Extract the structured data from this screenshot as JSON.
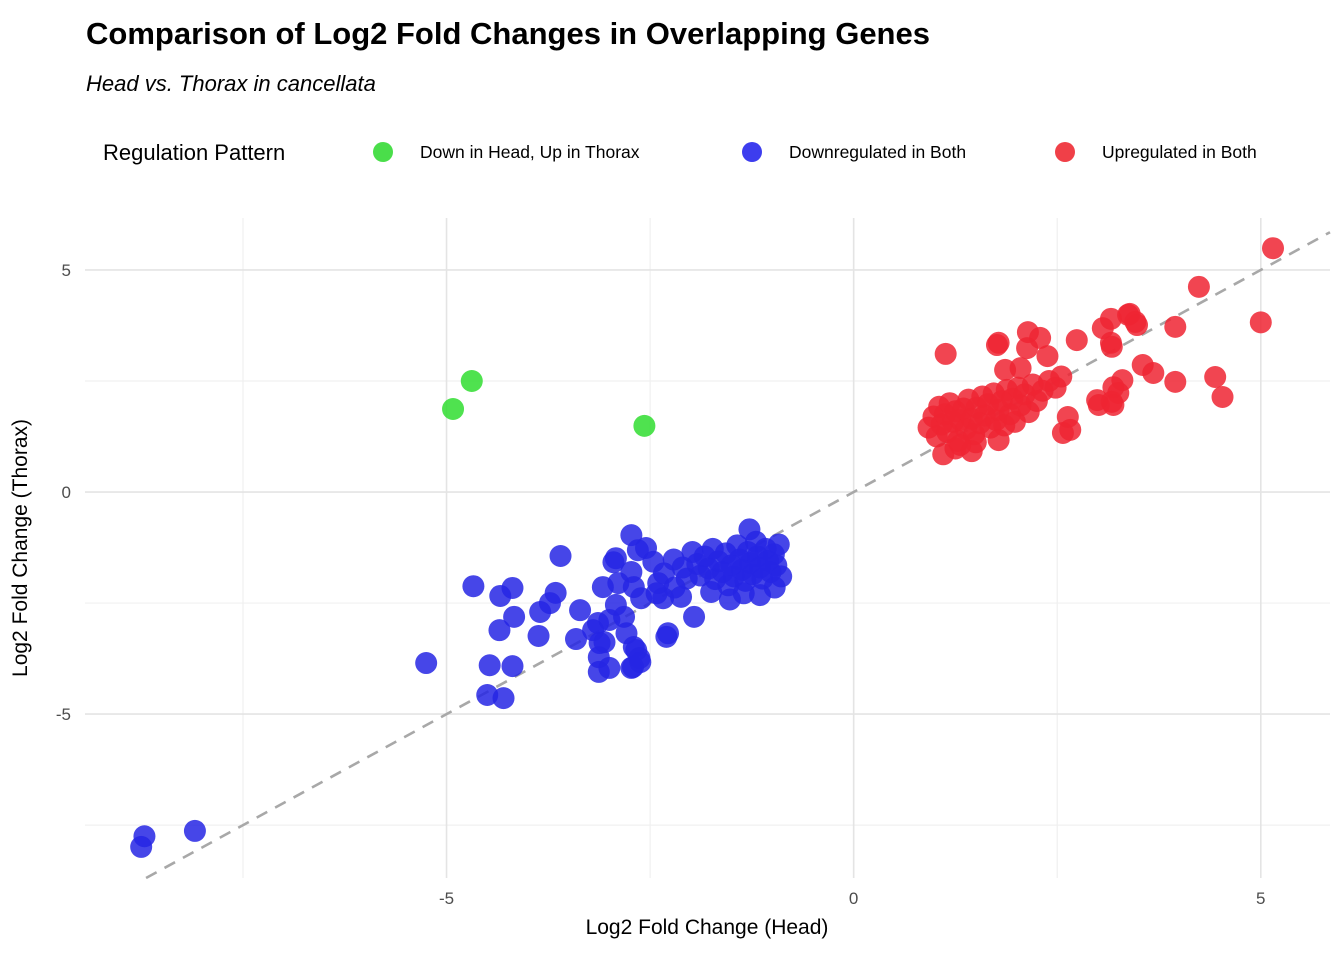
{
  "title": "Comparison of Log2 Fold Changes in Overlapping Genes",
  "subtitle": "Head vs. Thorax in cancellata",
  "legend": {
    "title": "Regulation Pattern",
    "items": [
      {
        "label": "Down in Head, Up in Thorax",
        "color": "#4ade4a"
      },
      {
        "label": "Downregulated in Both",
        "color": "#3d3dee"
      },
      {
        "label": "Upregulated in Both",
        "color": "#f04048"
      }
    ]
  },
  "chart_data": {
    "type": "scatter",
    "title": "Comparison of Log2 Fold Changes in Overlapping Genes",
    "subtitle": "Head vs. Thorax in cancellata",
    "xlabel": "Log2 Fold Change (Head)",
    "ylabel": "Log2 Fold Change (Thorax)",
    "xlim": [
      -9.44,
      5.85
    ],
    "ylim": [
      -8.69,
      6.17
    ],
    "x_ticks": [
      -5,
      0,
      5
    ],
    "y_ticks": [
      -5,
      0,
      5
    ],
    "x_minor_gridlines": [
      -7.5,
      -2.5,
      2.5
    ],
    "y_minor_gridlines": [
      -7.5,
      -2.5,
      2.5
    ],
    "grid": true,
    "legend_position": "top",
    "identity_line": {
      "slope": 1,
      "intercept": 0,
      "style": "dashed",
      "color": "#a8a8a8"
    },
    "point_alpha": 0.85,
    "point_radius": 11,
    "series": [
      {
        "name": "Down in Head, Up in Thorax",
        "color": "#30dd30",
        "points": [
          [
            -4.69,
            2.5
          ],
          [
            -4.92,
            1.87
          ],
          [
            -2.57,
            1.49
          ]
        ]
      },
      {
        "name": "Downregulated in Both",
        "color": "#2626e4",
        "points": [
          [
            -8.75,
            -7.99
          ],
          [
            -8.71,
            -7.75
          ],
          [
            -8.09,
            -7.63
          ],
          [
            -5.25,
            -3.85
          ],
          [
            -4.67,
            -2.12
          ],
          [
            -4.5,
            -4.57
          ],
          [
            -4.47,
            -3.9
          ],
          [
            -4.35,
            -3.11
          ],
          [
            -4.34,
            -2.34
          ],
          [
            -4.3,
            -4.64
          ],
          [
            -4.19,
            -2.16
          ],
          [
            -4.19,
            -3.92
          ],
          [
            -4.17,
            -2.81
          ],
          [
            -3.87,
            -3.24
          ],
          [
            -3.85,
            -2.7
          ],
          [
            -3.73,
            -2.5
          ],
          [
            -3.66,
            -2.27
          ],
          [
            -3.6,
            -1.44
          ],
          [
            -3.41,
            -3.31
          ],
          [
            -3.36,
            -2.66
          ],
          [
            -3.2,
            -3.11
          ],
          [
            -3.14,
            -2.95
          ],
          [
            -3.13,
            -4.05
          ],
          [
            -3.12,
            -3.4
          ],
          [
            -3.08,
            -2.14
          ],
          [
            -2.95,
            -1.58
          ],
          [
            -2.92,
            -2.54
          ],
          [
            -2.89,
            -2.05
          ],
          [
            -3.0,
            -2.88
          ],
          [
            -2.82,
            -2.81
          ],
          [
            -3.06,
            -3.38
          ],
          [
            -3.13,
            -3.72
          ],
          [
            -3.0,
            -3.96
          ],
          [
            -2.73,
            -1.8
          ],
          [
            -2.7,
            -2.14
          ],
          [
            -2.61,
            -2.39
          ],
          [
            -2.79,
            -3.18
          ],
          [
            -2.67,
            -3.56
          ],
          [
            -2.73,
            -3.96
          ],
          [
            -2.62,
            -3.83
          ],
          [
            -2.28,
            -3.18
          ],
          [
            -2.4,
            -2.05
          ],
          [
            -2.34,
            -2.39
          ],
          [
            -2.12,
            -2.36
          ],
          [
            -1.96,
            -2.81
          ],
          [
            -2.3,
            -3.26
          ],
          [
            -2.7,
            -3.49
          ],
          [
            -2.63,
            -3.74
          ],
          [
            -2.71,
            -3.94
          ],
          [
            -2.73,
            -0.97
          ],
          [
            -2.65,
            -1.31
          ],
          [
            -2.92,
            -1.49
          ],
          [
            -2.55,
            -1.26
          ],
          [
            -2.46,
            -1.57
          ],
          [
            -2.33,
            -1.83
          ],
          [
            -2.21,
            -1.52
          ],
          [
            -2.1,
            -1.7
          ],
          [
            -2.05,
            -1.95
          ],
          [
            -1.98,
            -1.35
          ],
          [
            -1.92,
            -1.62
          ],
          [
            -1.88,
            -1.88
          ],
          [
            -1.83,
            -1.45
          ],
          [
            -1.78,
            -1.72
          ],
          [
            -1.73,
            -1.28
          ],
          [
            -1.7,
            -1.96
          ],
          [
            -1.66,
            -1.56
          ],
          [
            -1.61,
            -1.8
          ],
          [
            -1.57,
            -1.38
          ],
          [
            -1.54,
            -2.1
          ],
          [
            -1.5,
            -1.65
          ],
          [
            -1.47,
            -1.9
          ],
          [
            -1.43,
            -1.2
          ],
          [
            -1.4,
            -1.52
          ],
          [
            -1.37,
            -1.75
          ],
          [
            -1.33,
            -2.0
          ],
          [
            -1.3,
            -1.35
          ],
          [
            -1.27,
            -1.6
          ],
          [
            -1.24,
            -1.85
          ],
          [
            -1.2,
            -1.12
          ],
          [
            -1.18,
            -1.45
          ],
          [
            -1.15,
            -1.7
          ],
          [
            -1.12,
            -1.95
          ],
          [
            -1.08,
            -1.28
          ],
          [
            -1.05,
            -1.55
          ],
          [
            -1.02,
            -1.8
          ],
          [
            -0.98,
            -1.4
          ],
          [
            -0.95,
            -1.65
          ],
          [
            -0.92,
            -1.18
          ],
          [
            -0.89,
            -1.9
          ],
          [
            -0.97,
            -2.15
          ],
          [
            -1.35,
            -2.28
          ],
          [
            -1.52,
            -2.42
          ],
          [
            -1.75,
            -2.25
          ],
          [
            -2.2,
            -2.15
          ],
          [
            -1.15,
            -2.32
          ],
          [
            -2.42,
            -2.28
          ],
          [
            -1.28,
            -0.84
          ]
        ]
      },
      {
        "name": "Upregulated in Both",
        "color": "#ee2533",
        "points": [
          [
            1.13,
            3.11
          ],
          [
            1.78,
            3.36
          ],
          [
            2.29,
            3.47
          ],
          [
            2.74,
            3.42
          ],
          [
            3.16,
            3.36
          ],
          [
            1.86,
            2.75
          ],
          [
            2.05,
            2.79
          ],
          [
            2.99,
            2.07
          ],
          [
            3.19,
            1.96
          ],
          [
            2.63,
            1.69
          ],
          [
            2.66,
            1.4
          ],
          [
            1.78,
            1.17
          ],
          [
            1.31,
            1.06
          ],
          [
            1.76,
            3.31
          ],
          [
            2.14,
            3.6
          ],
          [
            2.13,
            3.24
          ],
          [
            2.38,
            3.06
          ],
          [
            3.06,
            3.69
          ],
          [
            3.37,
            3.99
          ],
          [
            3.48,
            3.76
          ],
          [
            3.95,
            3.72
          ],
          [
            3.55,
            2.86
          ],
          [
            3.68,
            2.68
          ],
          [
            3.95,
            2.48
          ],
          [
            3.19,
            2.36
          ],
          [
            5.15,
            5.49
          ],
          [
            4.24,
            4.62
          ],
          [
            5.0,
            3.82
          ],
          [
            3.16,
            3.9
          ],
          [
            3.39,
            4.01
          ],
          [
            3.46,
            3.83
          ],
          [
            3.17,
            3.27
          ],
          [
            4.44,
            2.59
          ],
          [
            4.53,
            2.14
          ],
          [
            3.3,
            2.52
          ],
          [
            3.25,
            2.23
          ],
          [
            3.01,
            1.96
          ],
          [
            3.17,
            2.03
          ],
          [
            2.57,
            1.33
          ],
          [
            0.92,
            1.45
          ],
          [
            0.98,
            1.7
          ],
          [
            1.02,
            1.25
          ],
          [
            1.05,
            1.92
          ],
          [
            1.08,
            1.52
          ],
          [
            1.12,
            1.75
          ],
          [
            1.15,
            1.35
          ],
          [
            1.18,
            2.0
          ],
          [
            1.22,
            1.58
          ],
          [
            1.25,
            1.82
          ],
          [
            1.28,
            1.15
          ],
          [
            1.31,
            1.62
          ],
          [
            1.35,
            1.88
          ],
          [
            1.38,
            1.42
          ],
          [
            1.41,
            2.08
          ],
          [
            1.45,
            1.65
          ],
          [
            1.48,
            1.3
          ],
          [
            1.51,
            1.9
          ],
          [
            1.55,
            1.55
          ],
          [
            1.58,
            2.15
          ],
          [
            1.61,
            1.72
          ],
          [
            1.65,
            1.98
          ],
          [
            1.68,
            1.45
          ],
          [
            1.72,
            2.22
          ],
          [
            1.75,
            1.62
          ],
          [
            1.78,
            1.85
          ],
          [
            1.82,
            2.05
          ],
          [
            1.85,
            1.5
          ],
          [
            1.88,
            2.3
          ],
          [
            1.92,
            1.75
          ],
          [
            1.95,
            2.1
          ],
          [
            1.98,
            1.58
          ],
          [
            2.02,
            2.35
          ],
          [
            2.05,
            1.95
          ],
          [
            2.1,
            2.2
          ],
          [
            2.15,
            1.8
          ],
          [
            2.2,
            2.42
          ],
          [
            2.25,
            2.05
          ],
          [
            2.32,
            2.28
          ],
          [
            2.4,
            2.5
          ],
          [
            2.48,
            2.35
          ],
          [
            2.55,
            2.6
          ],
          [
            1.5,
            1.12
          ],
          [
            1.25,
            0.98
          ],
          [
            1.1,
            0.85
          ],
          [
            1.45,
            0.92
          ]
        ]
      }
    ]
  }
}
